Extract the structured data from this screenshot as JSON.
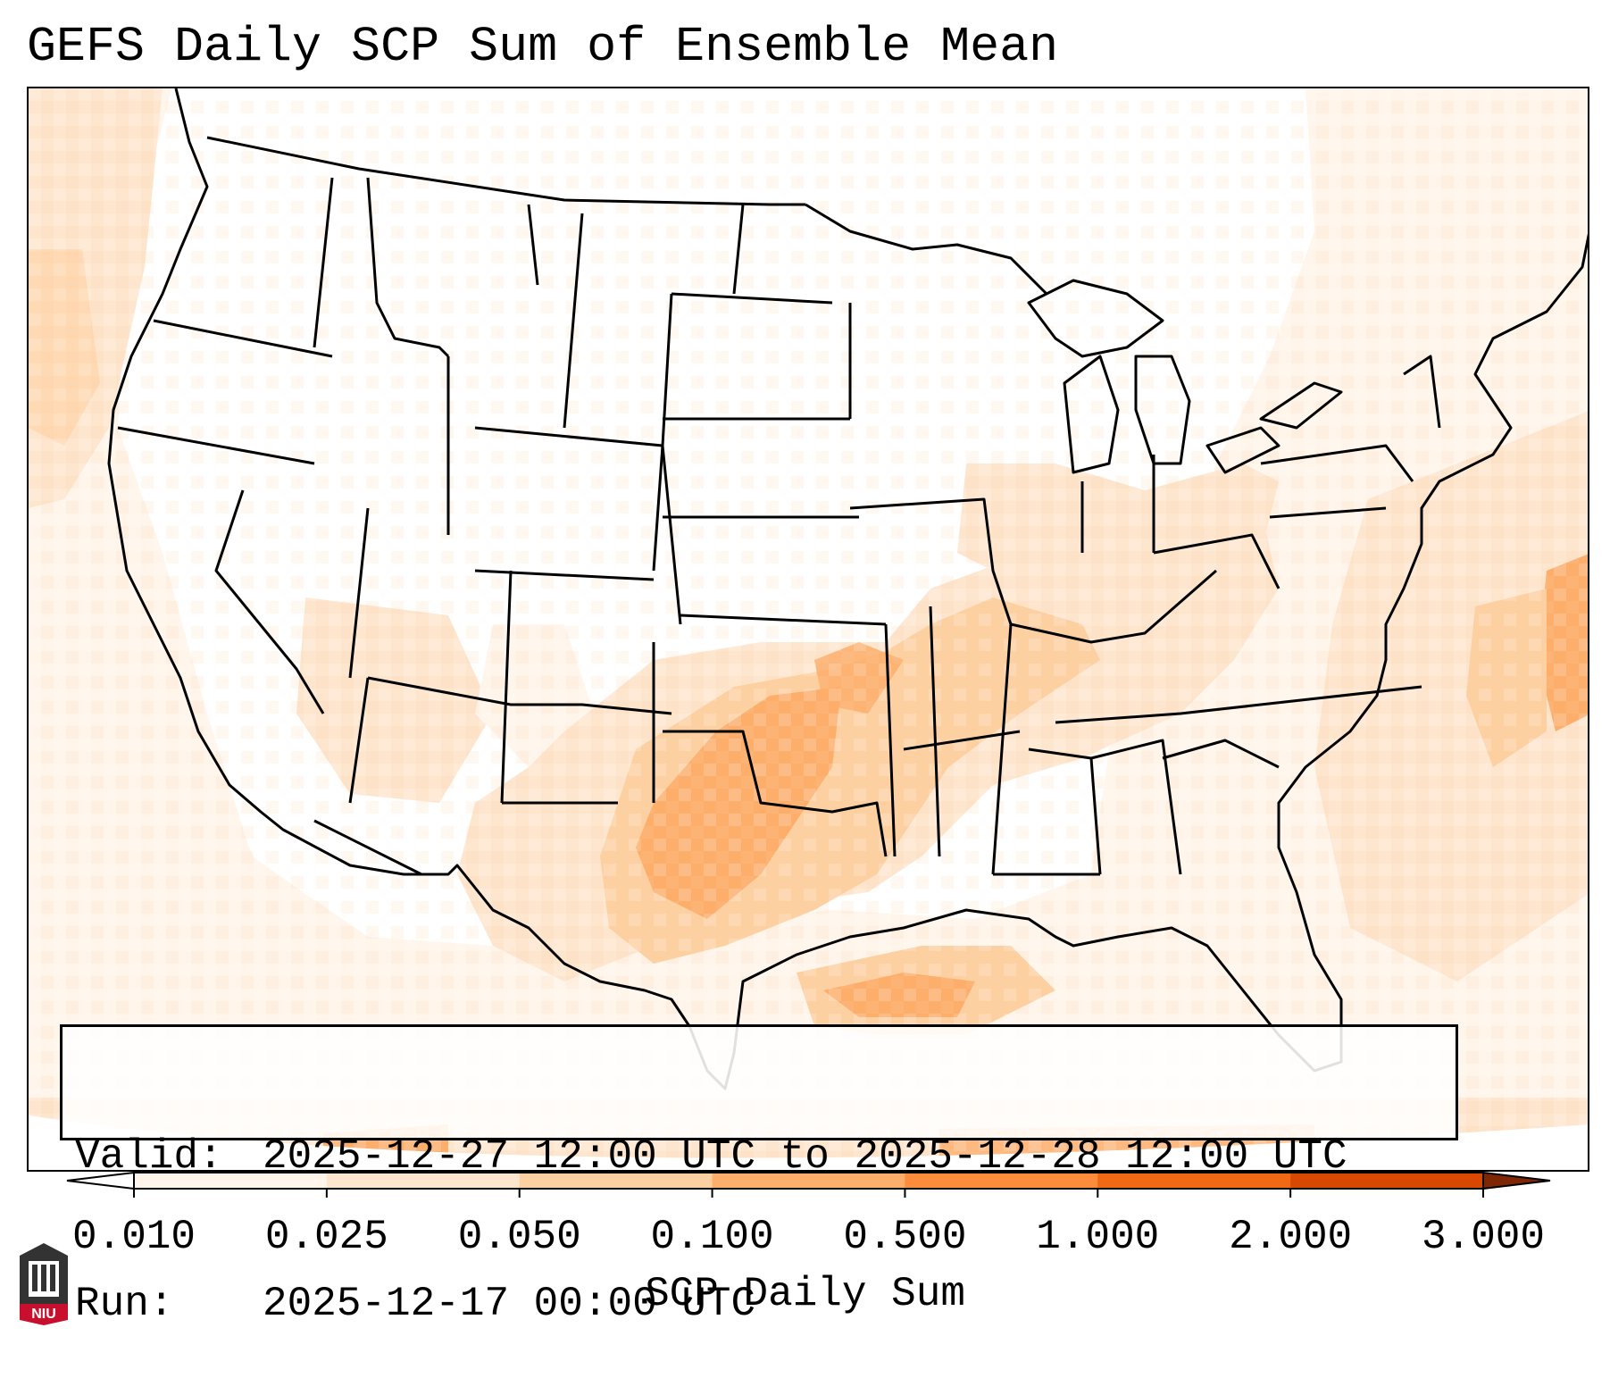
{
  "title": "GEFS Daily SCP Sum of Ensemble Mean",
  "info": {
    "valid_label": "Valid:",
    "valid_value": "2025-12-27 12:00 UTC to 2025-12-28 12:00 UTC",
    "run_label": "Run:",
    "run_value": "2025-12-17 00:00 UTC"
  },
  "colorbar": {
    "label": "SCP Daily Sum",
    "ticks": [
      "0.010",
      "0.025",
      "0.050",
      "0.100",
      "0.500",
      "1.000",
      "2.000",
      "3.000"
    ],
    "colors": [
      "#fff5eb",
      "#fee6ce",
      "#fdd0a2",
      "#fdae6b",
      "#fd8d3c",
      "#f16913",
      "#d94801",
      "#a63603"
    ],
    "under_color": "#ffffff",
    "over_color": "#7f2704"
  },
  "logo": {
    "text": "NIU",
    "icon": "niu-university-logo-icon"
  }
}
